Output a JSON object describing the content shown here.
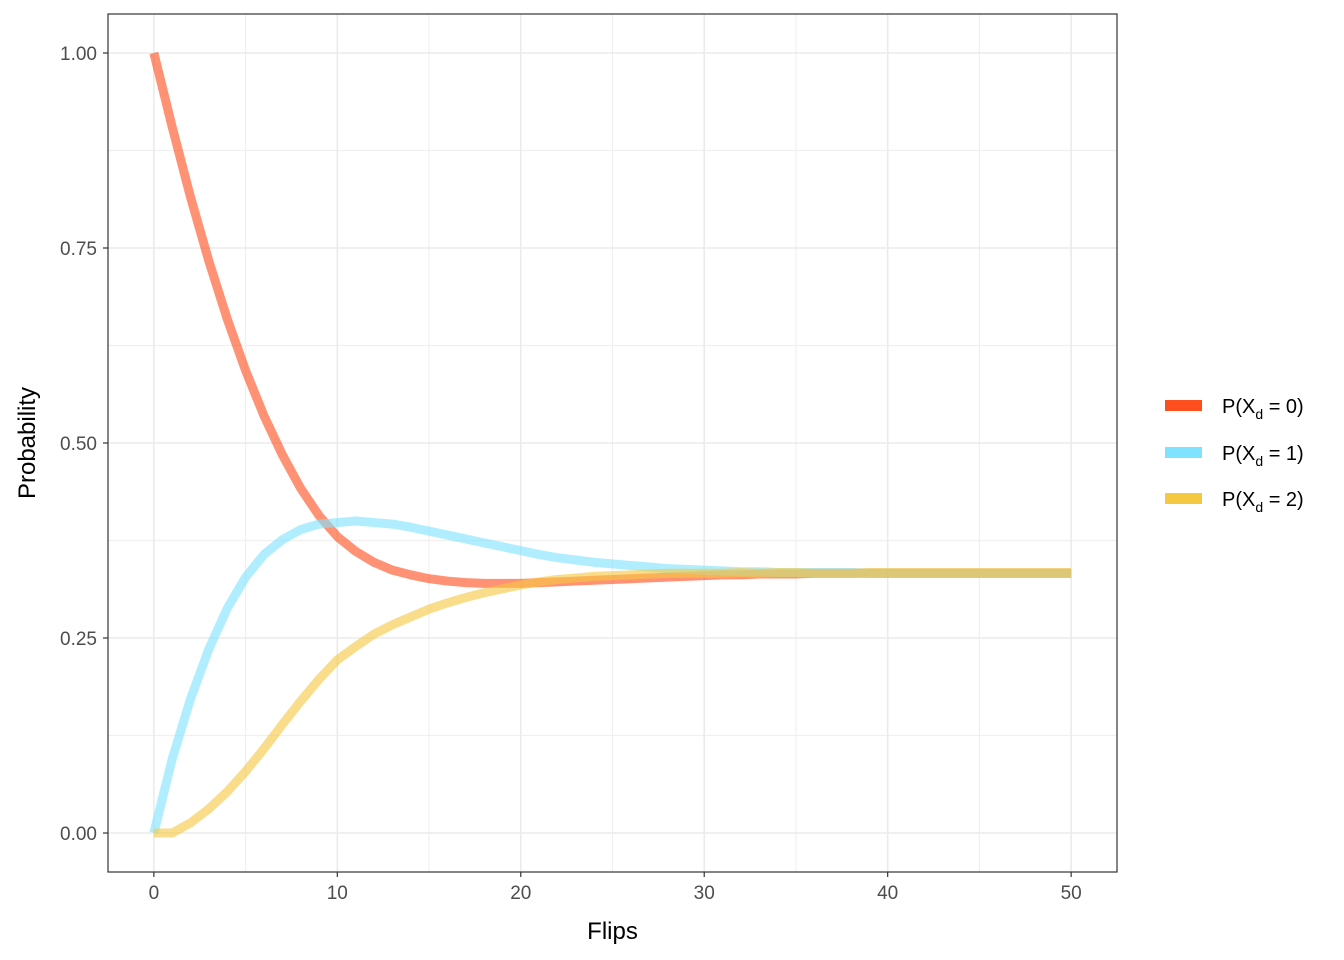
{
  "chart_data": {
    "type": "line",
    "xlabel": "Flips",
    "ylabel": "Probability",
    "xlim": [
      -2.5,
      52.5
    ],
    "ylim": [
      -0.05,
      1.05
    ],
    "x_ticks": [
      0,
      10,
      20,
      30,
      40,
      50
    ],
    "x_tick_labels": [
      "0",
      "10",
      "20",
      "30",
      "40",
      "50"
    ],
    "y_ticks": [
      0,
      0.25,
      0.5,
      0.75,
      1.0
    ],
    "y_tick_labels": [
      "0.00",
      "0.25",
      "0.50",
      "0.75",
      "1.00"
    ],
    "grid": true,
    "legend_position": "right",
    "x": [
      0,
      1,
      2,
      3,
      4,
      5,
      6,
      7,
      8,
      9,
      10,
      11,
      12,
      13,
      14,
      15,
      16,
      17,
      18,
      19,
      20,
      21,
      22,
      23,
      24,
      25,
      26,
      27,
      28,
      29,
      30,
      31,
      32,
      33,
      34,
      35,
      36,
      37,
      38,
      39,
      40,
      41,
      42,
      43,
      44,
      45,
      46,
      47,
      48,
      49,
      50
    ],
    "series": [
      {
        "name": "P(X_d = 0)",
        "legend": {
          "prefix": "P(X",
          "sub": "d",
          "suffix": " = 0)"
        },
        "color": "#FF4F1F",
        "values": [
          1.0,
          0.905,
          0.815,
          0.733,
          0.659,
          0.593,
          0.535,
          0.485,
          0.442,
          0.407,
          0.38,
          0.361,
          0.347,
          0.337,
          0.331,
          0.326,
          0.323,
          0.321,
          0.32,
          0.32,
          0.32,
          0.321,
          0.322,
          0.323,
          0.324,
          0.325,
          0.326,
          0.327,
          0.328,
          0.329,
          0.33,
          0.331,
          0.331,
          0.332,
          0.332,
          0.332,
          0.333,
          0.333,
          0.333,
          0.333,
          0.333,
          0.333,
          0.333,
          0.333,
          0.333,
          0.333,
          0.333,
          0.333,
          0.333,
          0.333,
          0.333
        ]
      },
      {
        "name": "P(X_d = 1)",
        "legend": {
          "prefix": "P(X",
          "sub": "d",
          "suffix": " = 1)"
        },
        "color": "#7FE3FF",
        "values": [
          0.0,
          0.095,
          0.172,
          0.236,
          0.288,
          0.328,
          0.357,
          0.376,
          0.389,
          0.396,
          0.398,
          0.4,
          0.398,
          0.396,
          0.392,
          0.387,
          0.382,
          0.377,
          0.372,
          0.367,
          0.362,
          0.357,
          0.353,
          0.35,
          0.347,
          0.345,
          0.343,
          0.341,
          0.339,
          0.338,
          0.337,
          0.336,
          0.335,
          0.335,
          0.334,
          0.334,
          0.334,
          0.334,
          0.334,
          0.333,
          0.333,
          0.333,
          0.333,
          0.333,
          0.333,
          0.333,
          0.333,
          0.333,
          0.333,
          0.333,
          0.333
        ]
      },
      {
        "name": "P(X_d = 2)",
        "legend": {
          "prefix": "P(X",
          "sub": "d",
          "suffix": " = 2)"
        },
        "color": "#F5C842",
        "values": [
          0.0,
          0.0,
          0.013,
          0.031,
          0.053,
          0.079,
          0.108,
          0.139,
          0.169,
          0.197,
          0.222,
          0.239,
          0.255,
          0.267,
          0.277,
          0.287,
          0.295,
          0.302,
          0.308,
          0.313,
          0.318,
          0.322,
          0.325,
          0.327,
          0.329,
          0.33,
          0.331,
          0.332,
          0.333,
          0.333,
          0.333,
          0.333,
          0.334,
          0.333,
          0.334,
          0.334,
          0.333,
          0.333,
          0.333,
          0.334,
          0.334,
          0.334,
          0.334,
          0.334,
          0.334,
          0.334,
          0.334,
          0.334,
          0.334,
          0.334,
          0.334
        ]
      }
    ]
  }
}
